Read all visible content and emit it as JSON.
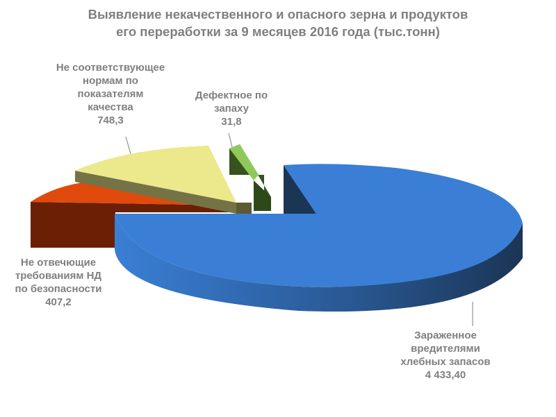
{
  "chart_data": {
    "type": "pie",
    "title_lines": [
      "Выявление некачественного и опасного зерна и продуктов",
      "его переработки за 9 месяцев 2016 года (тыс.тонн)"
    ],
    "slices": [
      {
        "label_lines": [
          "Зараженное",
          "вредителями",
          "хлебных запасов"
        ],
        "value_text": "4 433,40",
        "value": 4433.4,
        "color": "#3a7fd5",
        "side_color": "#1f3f66"
      },
      {
        "label_lines": [
          "Не отвечющие",
          "требованиям НД",
          "по безопасности"
        ],
        "value_text": "407,2",
        "value": 407.2,
        "color": "#e04a0d",
        "side_color": "#6b1f05"
      },
      {
        "label_lines": [
          "Не соответствующее",
          "нормам по",
          "показателям",
          "качества"
        ],
        "value_text": "748,3",
        "value": 748.3,
        "color": "#ece88c",
        "side_color": "#757345"
      },
      {
        "label_lines": [
          "Дефектное по",
          "запаху"
        ],
        "value_text": "31,8",
        "value": 31.8,
        "color": "#8fc95b",
        "side_color": "#36521d"
      }
    ],
    "exploded": true,
    "legend": "none"
  }
}
